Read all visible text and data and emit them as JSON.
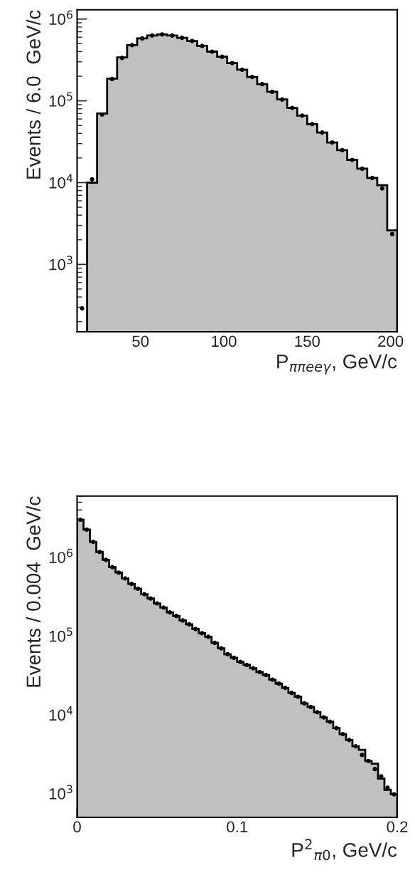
{
  "chart_data": [
    {
      "type": "histogram",
      "xlabel": "P$_{ππeeγ}$, GeV/c",
      "ylabel": "Events / 6.0  GeV/c",
      "log": "y",
      "xlim": [
        12,
        204
      ],
      "xticks": [
        50,
        100,
        150,
        200
      ],
      "ylim": [
        150,
        1300000
      ],
      "yticks": [
        {
          "value": 1000,
          "label": "10$^{3}$"
        },
        {
          "value": 10000,
          "label": "10$^{4}$"
        },
        {
          "value": 100000,
          "label": "10$^{5}$"
        },
        {
          "value": 1000000,
          "label": "10$^{6}$"
        }
      ],
      "bins": [
        18,
        24,
        30,
        36,
        42,
        48,
        54,
        60,
        66,
        72,
        78,
        84,
        90,
        96,
        102,
        108,
        114,
        120,
        126,
        132,
        138,
        144,
        150,
        156,
        162,
        168,
        174,
        180,
        186,
        192,
        198,
        204
      ],
      "series": [
        {
          "type": "histogram",
          "color": "#c0c0c0",
          "values": [
            10000,
            70000,
            187000,
            340000,
            480000,
            580000,
            630000,
            650000,
            630000,
            590000,
            540000,
            470000,
            400000,
            346000,
            290000,
            240000,
            196000,
            160000,
            129000,
            104000,
            82000,
            66000,
            52000,
            41000,
            31000,
            25000,
            19000,
            14800,
            11400,
            9300,
            2600
          ]
        },
        {
          "type": "scatter",
          "color": "#000000",
          "marker": "circle",
          "x": [
            15,
            21,
            27,
            33,
            39,
            45,
            51,
            57,
            63,
            69,
            75,
            81,
            87,
            93,
            99,
            105,
            111,
            117,
            123,
            129,
            135,
            141,
            147,
            153,
            159,
            165,
            171,
            177,
            183,
            189,
            195,
            201
          ],
          "values": [
            290,
            11000,
            68000,
            185000,
            335000,
            480000,
            580000,
            630000,
            650000,
            630000,
            590000,
            540000,
            470000,
            400000,
            346000,
            290000,
            240000,
            196000,
            160000,
            129000,
            104000,
            82000,
            66000,
            52000,
            41000,
            31000,
            25000,
            19000,
            14800,
            11400,
            8500,
            2350
          ]
        }
      ]
    },
    {
      "type": "histogram",
      "xlabel": "P$^{2}$$_{π0}$, GeV/c",
      "ylabel": "Events / 0.004  GeV/c",
      "log": "y",
      "xlim": [
        0,
        0.2
      ],
      "xticks": [
        0,
        0.1,
        0.2
      ],
      "ylim": [
        500,
        6000000
      ],
      "yticks": [
        {
          "value": 1000,
          "label": "10$^{3}$"
        },
        {
          "value": 10000,
          "label": "10$^{4}$"
        },
        {
          "value": 100000,
          "label": "10$^{5}$"
        },
        {
          "value": 1000000,
          "label": "10$^{6}$"
        }
      ],
      "bins": [
        0,
        0.004,
        0.008,
        0.012,
        0.016,
        0.02,
        0.024,
        0.028,
        0.032,
        0.036,
        0.04,
        0.044,
        0.048,
        0.052,
        0.056,
        0.06,
        0.064,
        0.068,
        0.072,
        0.076,
        0.08,
        0.084,
        0.088,
        0.092,
        0.096,
        0.1,
        0.104,
        0.108,
        0.112,
        0.116,
        0.12,
        0.124,
        0.128,
        0.132,
        0.136,
        0.14,
        0.144,
        0.148,
        0.152,
        0.156,
        0.16,
        0.164,
        0.168,
        0.172,
        0.176,
        0.18,
        0.184,
        0.188,
        0.192,
        0.196,
        0.2
      ],
      "series": [
        {
          "type": "histogram",
          "color": "#c0c0c0",
          "values": [
            3000000,
            2250000,
            1570000,
            1170000,
            930000,
            750000,
            640000,
            540000,
            460000,
            400000,
            340000,
            300000,
            260000,
            230000,
            200000,
            180000,
            158000,
            141000,
            123000,
            109000,
            98000,
            82000,
            70000,
            59000,
            53000,
            47000,
            43000,
            39000,
            35000,
            32000,
            28000,
            25000,
            22000,
            19000,
            17000,
            14000,
            12600,
            10800,
            9300,
            8200,
            6800,
            5700,
            4800,
            4000,
            3600,
            2600,
            2400,
            1550,
            1120,
            980
          ]
        },
        {
          "type": "scatter",
          "color": "#000000",
          "marker": "circle",
          "x": [
            0.002,
            0.006,
            0.01,
            0.014,
            0.018,
            0.022,
            0.026,
            0.03,
            0.034,
            0.038,
            0.042,
            0.046,
            0.05,
            0.054,
            0.058,
            0.062,
            0.066,
            0.07,
            0.074,
            0.078,
            0.082,
            0.086,
            0.09,
            0.094,
            0.098,
            0.102,
            0.106,
            0.11,
            0.114,
            0.118,
            0.122,
            0.126,
            0.13,
            0.134,
            0.138,
            0.142,
            0.146,
            0.15,
            0.154,
            0.158,
            0.162,
            0.166,
            0.17,
            0.174,
            0.178,
            0.182,
            0.186,
            0.19,
            0.194,
            0.198
          ],
          "values": [
            3000000,
            2250000,
            1570000,
            1170000,
            930000,
            750000,
            640000,
            540000,
            460000,
            400000,
            340000,
            300000,
            260000,
            230000,
            200000,
            180000,
            158000,
            141000,
            123000,
            109000,
            98000,
            82000,
            70000,
            59000,
            53000,
            47000,
            43000,
            39000,
            35000,
            32000,
            28000,
            25000,
            22000,
            19000,
            17000,
            14000,
            12600,
            10800,
            9300,
            8200,
            6800,
            5700,
            4800,
            4000,
            3100,
            2600,
            2050,
            1660,
            1190,
            980
          ]
        }
      ]
    }
  ]
}
